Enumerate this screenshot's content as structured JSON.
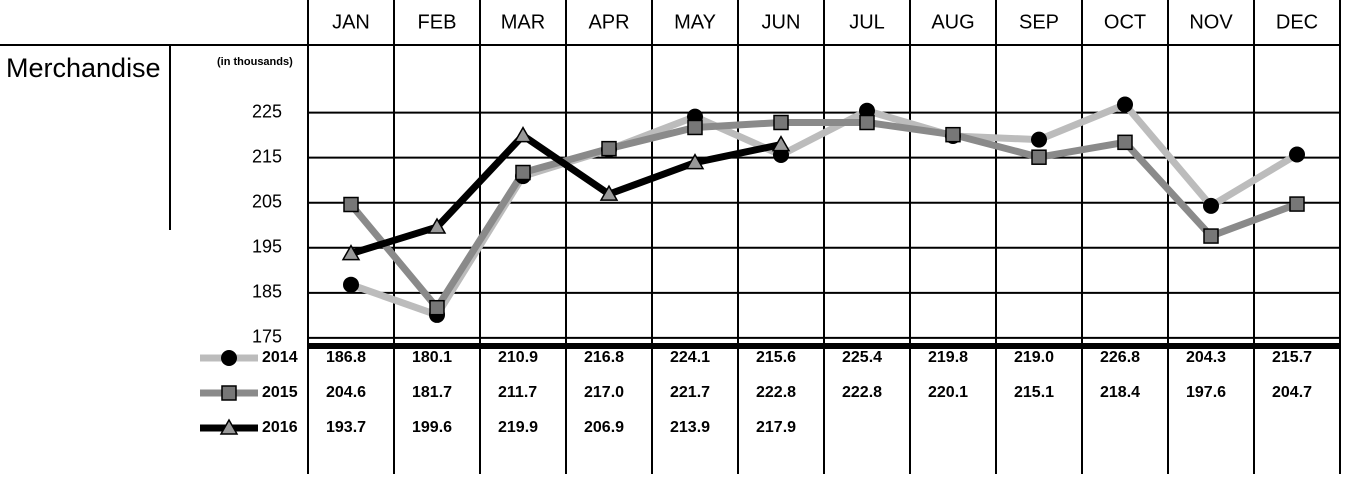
{
  "chart_data": {
    "type": "line",
    "title": "Merchandise",
    "subtitle": "(in thousands)",
    "categories": [
      "JAN",
      "FEB",
      "MAR",
      "APR",
      "MAY",
      "JUN",
      "JUL",
      "AUG",
      "SEP",
      "OCT",
      "NOV",
      "DEC"
    ],
    "series": [
      {
        "name": "2014",
        "color": "#bcbcbc",
        "marker": "circle",
        "marker_color": "#000000",
        "values": [
          186.8,
          180.1,
          210.9,
          216.8,
          224.1,
          215.6,
          225.4,
          219.8,
          219.0,
          226.8,
          204.3,
          215.7
        ],
        "value_labels": [
          "186.8",
          "180.1",
          "210.9",
          "216.8",
          "224.1",
          "215.6",
          "225.4",
          "219.8",
          "219.0",
          "226.8",
          "204.3",
          "215.7"
        ]
      },
      {
        "name": "2015",
        "color": "#8a8a8a",
        "marker": "square",
        "marker_color": "#777777",
        "values": [
          204.6,
          181.7,
          211.7,
          217.0,
          221.7,
          222.8,
          222.8,
          220.1,
          215.1,
          218.4,
          197.6,
          204.7
        ],
        "value_labels": [
          "204.6",
          "181.7",
          "211.7",
          "217.0",
          "221.7",
          "222.8",
          "222.8",
          "220.1",
          "215.1",
          "218.4",
          "197.6",
          "204.7"
        ]
      },
      {
        "name": "2016",
        "color": "#000000",
        "marker": "triangle",
        "marker_color": "#999999",
        "values": [
          193.7,
          199.6,
          219.9,
          206.9,
          213.9,
          217.9,
          null,
          null,
          null,
          null,
          null,
          null
        ],
        "value_labels": [
          "193.7",
          "199.6",
          "219.9",
          "206.9",
          "213.9",
          "217.9",
          null,
          null,
          null,
          null,
          null,
          null
        ]
      }
    ],
    "ylim": [
      173.2,
      240
    ],
    "yticks": [
      175,
      185,
      195,
      205,
      215,
      225
    ],
    "grid": true
  }
}
